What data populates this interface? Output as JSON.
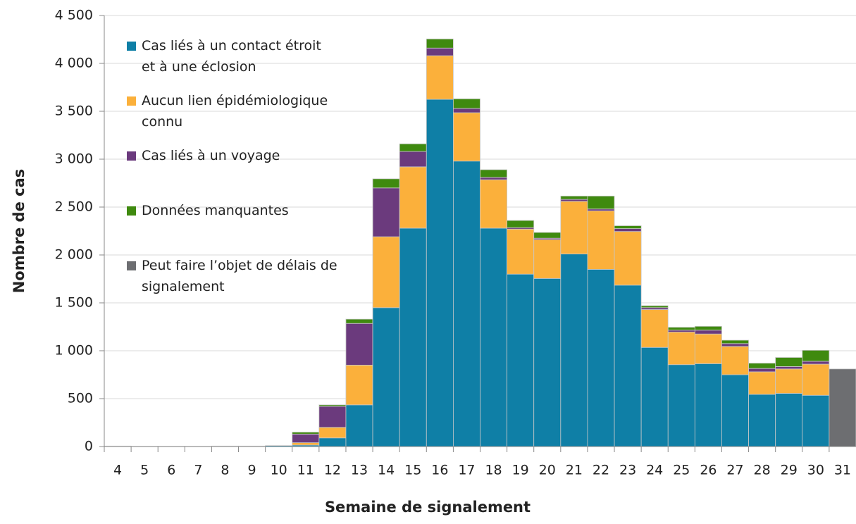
{
  "chart_data": {
    "type": "stacked_bar",
    "xlabel": "Semaine de signalement",
    "ylabel": "Nombre de cas",
    "categories": [
      "4",
      "5",
      "6",
      "7",
      "8",
      "9",
      "10",
      "11",
      "12",
      "13",
      "14",
      "15",
      "16",
      "17",
      "18",
      "19",
      "20",
      "21",
      "22",
      "23",
      "24",
      "25",
      "26",
      "27",
      "28",
      "29",
      "30",
      "31"
    ],
    "series": [
      {
        "name": "Cas liés à un contact étroit et à une éclosion",
        "color": "#0f7fa6",
        "values": [
          5,
          3,
          3,
          3,
          5,
          5,
          10,
          15,
          90,
          435,
          1450,
          2280,
          3625,
          2980,
          2280,
          1800,
          1755,
          2010,
          1850,
          1685,
          1035,
          855,
          865,
          750,
          545,
          555,
          535,
          null
        ]
      },
      {
        "name": "Aucun lien épidémiologique connu",
        "color": "#fbb03b",
        "values": [
          0,
          0,
          0,
          0,
          0,
          0,
          0,
          25,
          110,
          415,
          740,
          640,
          455,
          505,
          505,
          470,
          405,
          550,
          610,
          560,
          395,
          340,
          310,
          295,
          235,
          255,
          325,
          null
        ]
      },
      {
        "name": "Cas liés à un voyage",
        "color": "#6b3a7d",
        "values": [
          0,
          0,
          0,
          0,
          0,
          0,
          0,
          90,
          220,
          435,
          510,
          160,
          80,
          45,
          25,
          15,
          15,
          20,
          20,
          30,
          20,
          20,
          40,
          30,
          35,
          25,
          30,
          null
        ]
      },
      {
        "name": "Données manquantes",
        "color": "#3f8a0f",
        "values": [
          0,
          0,
          0,
          0,
          0,
          0,
          0,
          20,
          15,
          45,
          95,
          80,
          95,
          100,
          80,
          75,
          60,
          35,
          135,
          30,
          20,
          30,
          40,
          35,
          55,
          95,
          115,
          null
        ]
      },
      {
        "name": "Peut faire l’objet de délais de signalement",
        "color": "#6d6e71",
        "values": [
          null,
          null,
          null,
          null,
          null,
          null,
          null,
          null,
          null,
          null,
          null,
          null,
          null,
          null,
          null,
          null,
          null,
          null,
          null,
          null,
          null,
          null,
          null,
          null,
          null,
          null,
          null,
          810
        ]
      }
    ],
    "ylim": [
      0,
      4500
    ],
    "yticks": [
      0,
      500,
      {
        "value": 1000,
        "label": "1 000"
      },
      {
        "value": 1500,
        "label": "1 500"
      },
      {
        "value": 2000,
        "label": "2 000"
      },
      {
        "value": 2500,
        "label": "2 500"
      },
      {
        "value": 3000,
        "label": "3 000"
      },
      {
        "value": 3500,
        "label": "3 500"
      },
      {
        "value": 4000,
        "label": "4 000"
      },
      {
        "value": 4500,
        "label": "4 500"
      }
    ],
    "grid": true,
    "legend": "upper left"
  }
}
